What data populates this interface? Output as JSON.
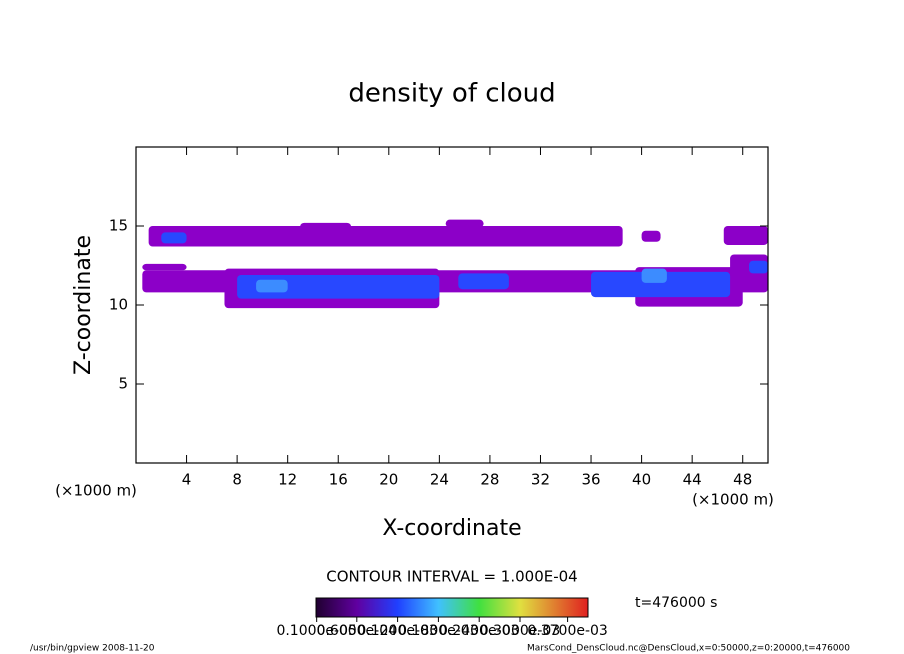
{
  "chart_data": {
    "type": "contour",
    "title": "density of cloud",
    "x_label": "X-coordinate",
    "y_label": "Z-coordinate",
    "x_unit": "(×1000 m)",
    "y_unit": "(×1000 m)",
    "xlim": [
      0,
      50
    ],
    "ylim": [
      0,
      20
    ],
    "xticks": [
      4,
      8,
      12,
      16,
      20,
      24,
      28,
      32,
      36,
      40,
      44,
      48
    ],
    "yticks": [
      5,
      10,
      15
    ],
    "contour_interval": "CONTOUR INTERVAL = 1.000E-04",
    "time_label": "t=476000 s",
    "colorbar_ticks": [
      {
        "value": 1e-06,
        "label": "0.1000e-05"
      },
      {
        "value": 6e-05,
        "label": "0.6000e-04"
      },
      {
        "value": 0.00012,
        "label": "0.1200e-03"
      },
      {
        "value": 0.00018,
        "label": "0.1800e-03"
      },
      {
        "value": 0.00024,
        "label": "0.2400e-03"
      },
      {
        "value": 0.0003,
        "label": "0.3000e-03"
      },
      {
        "value": 0.00037,
        "label": "0.3700e-03"
      }
    ],
    "colorbar_lim": [
      0,
      0.0004
    ],
    "regions": [
      {
        "x": [
          1,
          38.5
        ],
        "z": [
          13.7,
          15.0
        ],
        "value": 3e-05,
        "color": "#8c00c8"
      },
      {
        "x": [
          13,
          17
        ],
        "z": [
          14.8,
          15.2
        ],
        "value": 3e-05,
        "color": "#8c00c8"
      },
      {
        "x": [
          24.5,
          27.5
        ],
        "z": [
          14.9,
          15.4
        ],
        "value": 3e-05,
        "color": "#8c00c8"
      },
      {
        "x": [
          40,
          41.5
        ],
        "z": [
          14.0,
          14.7
        ],
        "value": 3e-05,
        "color": "#8c00c8"
      },
      {
        "x": [
          46.5,
          50
        ],
        "z": [
          13.8,
          15.0
        ],
        "value": 3e-05,
        "color": "#8c00c8"
      },
      {
        "x": [
          47,
          50
        ],
        "z": [
          11.6,
          13.2
        ],
        "value": 3e-05,
        "color": "#8c00c8"
      },
      {
        "x": [
          0.5,
          50
        ],
        "z": [
          10.8,
          12.2
        ],
        "value": 3e-05,
        "color": "#8c00c8"
      },
      {
        "x": [
          7,
          24
        ],
        "z": [
          9.8,
          12.3
        ],
        "value": 3e-05,
        "color": "#8c00c8"
      },
      {
        "x": [
          39.5,
          48
        ],
        "z": [
          9.9,
          12.4
        ],
        "value": 3e-05,
        "color": "#8c00c8"
      },
      {
        "x": [
          0.5,
          4
        ],
        "z": [
          12.2,
          12.6
        ],
        "value": 3e-05,
        "color": "#8c00c8"
      },
      {
        "x": [
          2,
          4
        ],
        "z": [
          13.9,
          14.6
        ],
        "value": 9e-05,
        "color": "#2848ff"
      },
      {
        "x": [
          8,
          24
        ],
        "z": [
          10.4,
          11.9
        ],
        "value": 9e-05,
        "color": "#2848ff"
      },
      {
        "x": [
          25.5,
          29.5
        ],
        "z": [
          11.0,
          12.0
        ],
        "value": 9e-05,
        "color": "#2848ff"
      },
      {
        "x": [
          36,
          47
        ],
        "z": [
          10.5,
          12.1
        ],
        "value": 9e-05,
        "color": "#2848ff"
      },
      {
        "x": [
          48.5,
          50
        ],
        "z": [
          12.0,
          12.8
        ],
        "value": 9e-05,
        "color": "#2848ff"
      },
      {
        "x": [
          9.5,
          12
        ],
        "z": [
          10.8,
          11.6
        ],
        "value": 0.00015,
        "color": "#3c8cff"
      },
      {
        "x": [
          40,
          42
        ],
        "z": [
          11.4,
          12.3
        ],
        "value": 0.00015,
        "color": "#3c8cff"
      }
    ],
    "footer_left": "/usr/bin/gpview  2008-11-20",
    "footer_right": "MarsCond_DensCloud.nc@DensCloud,x=0:50000,z=0:20000,t=476000"
  }
}
